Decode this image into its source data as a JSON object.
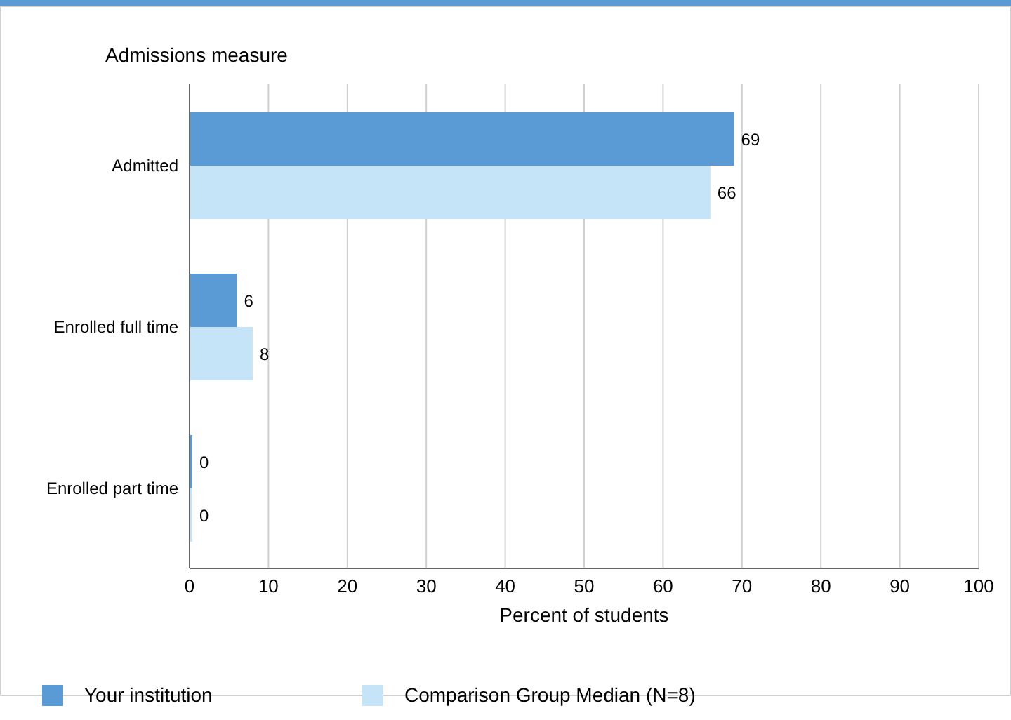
{
  "chart_data": {
    "type": "bar",
    "orientation": "horizontal",
    "ylabel": "Admissions measure",
    "xlabel": "Percent of students",
    "categories": [
      "Admitted",
      "Enrolled full time",
      "Enrolled part time"
    ],
    "series": [
      {
        "name": "Your institution",
        "color": "#5b9bd5",
        "values": [
          69,
          6,
          0
        ]
      },
      {
        "name": "Comparison Group Median (N=8)",
        "color": "#c5e4f7",
        "values": [
          66,
          8,
          0
        ]
      }
    ],
    "xlim": [
      0,
      100
    ],
    "xticks": [
      0,
      10,
      20,
      30,
      40,
      50,
      60,
      70,
      80,
      90,
      100
    ],
    "grid": "x",
    "legend": "bottom",
    "data_labels": true
  }
}
